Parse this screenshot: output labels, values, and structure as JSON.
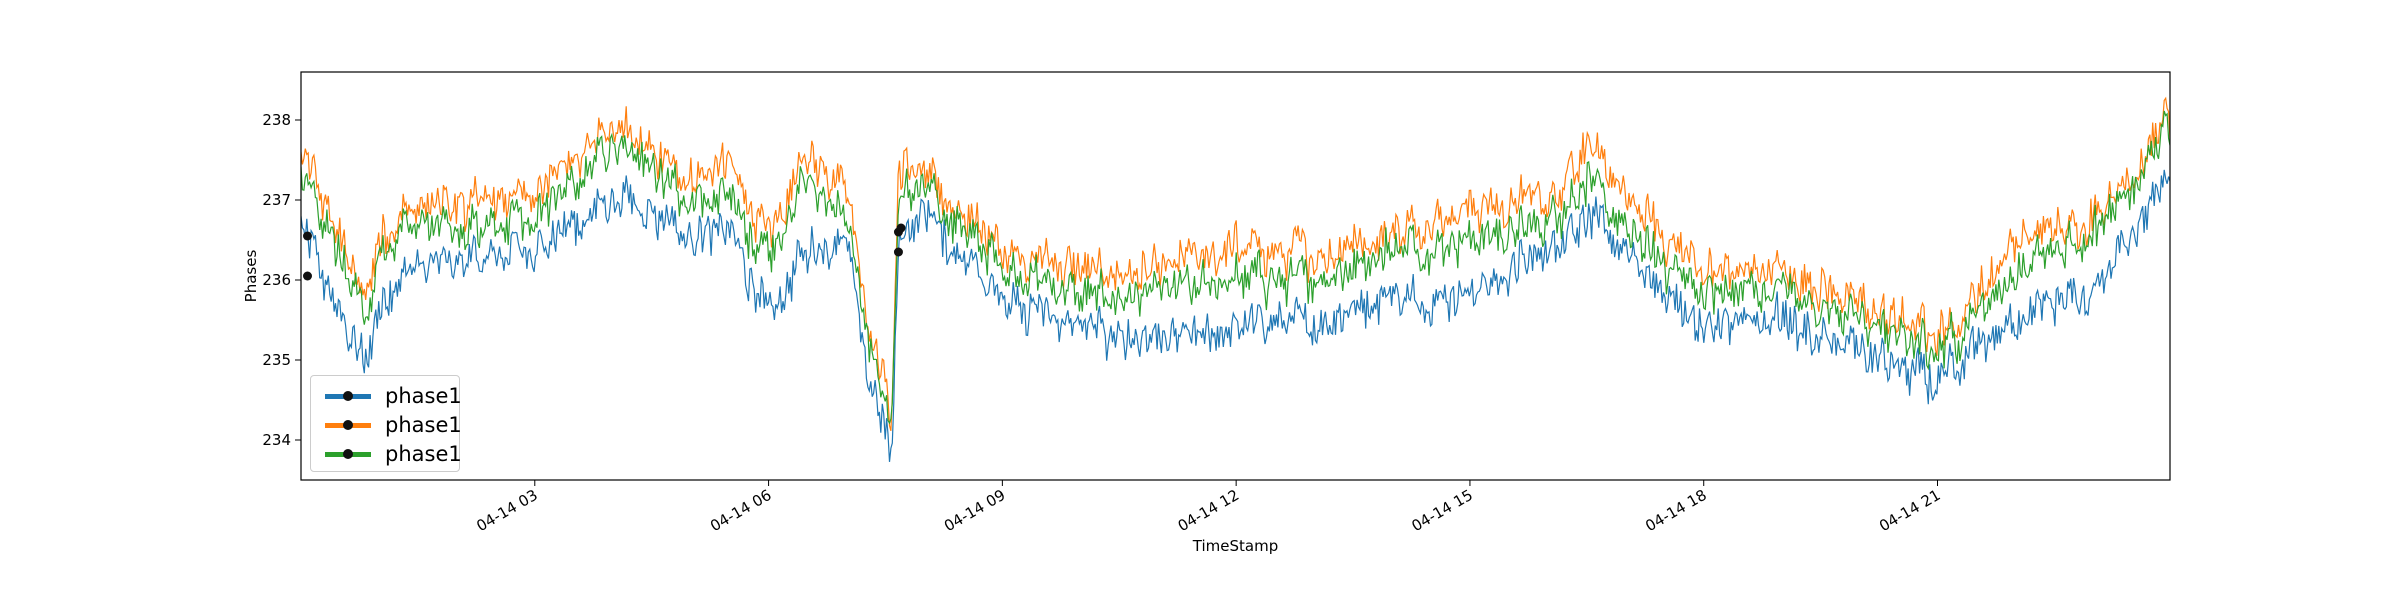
{
  "chart_data": {
    "type": "line",
    "title": "",
    "xlabel": "TimeStamp",
    "ylabel": "Phases",
    "x_range": [
      "04-14 00:00",
      "04-14 23:59"
    ],
    "ylim": [
      233.5,
      238.6
    ],
    "y_ticks": [
      234,
      235,
      236,
      237,
      238
    ],
    "x_ticks": [
      "04-14 03",
      "04-14 06",
      "04-14 09",
      "04-14 12",
      "04-14 15",
      "04-14 18",
      "04-14 21"
    ],
    "grid": false,
    "legend_position": "lower-left",
    "colors": [
      "#1f77b4",
      "#ff7f0e",
      "#2ca02c"
    ],
    "series": [
      {
        "name": "phase1",
        "color": "#1f77b4",
        "x": [
          "00:00",
          "00:30",
          "00:50",
          "01:00",
          "01:20",
          "02:00",
          "03:00",
          "04:00",
          "05:00",
          "05:30",
          "06:00",
          "06:30",
          "07:00",
          "07:15",
          "07:35",
          "07:40",
          "08:00",
          "09:00",
          "10:00",
          "11:00",
          "12:00",
          "13:00",
          "14:00",
          "15:00",
          "16:00",
          "16:30",
          "17:00",
          "18:00",
          "19:00",
          "20:00",
          "21:00",
          "21:30",
          "22:00",
          "23:00",
          "23:59"
        ],
        "y": [
          236.6,
          235.6,
          234.9,
          235.7,
          236.1,
          236.2,
          236.4,
          237.0,
          236.6,
          236.6,
          235.5,
          236.4,
          236.6,
          235.0,
          233.8,
          236.5,
          236.8,
          235.8,
          235.4,
          235.2,
          235.4,
          235.5,
          235.8,
          235.8,
          236.4,
          236.8,
          236.3,
          235.4,
          235.5,
          235.1,
          234.7,
          235.2,
          235.5,
          235.9,
          237.3
        ]
      },
      {
        "name": "phase1",
        "color": "#ff7f0e",
        "x": [
          "00:00",
          "00:30",
          "00:50",
          "01:00",
          "01:20",
          "02:00",
          "03:00",
          "04:00",
          "05:00",
          "05:30",
          "06:00",
          "06:30",
          "07:00",
          "07:15",
          "07:35",
          "07:40",
          "08:00",
          "09:00",
          "10:00",
          "11:00",
          "12:00",
          "13:00",
          "14:00",
          "15:00",
          "16:00",
          "16:30",
          "17:00",
          "18:00",
          "19:00",
          "20:00",
          "21:00",
          "21:30",
          "22:00",
          "23:00",
          "23:59"
        ],
        "y": [
          237.6,
          236.5,
          235.7,
          236.5,
          236.9,
          236.9,
          237.1,
          237.9,
          237.3,
          237.4,
          236.5,
          237.6,
          237.2,
          235.7,
          234.3,
          237.4,
          237.3,
          236.4,
          236.1,
          236.1,
          236.4,
          236.3,
          236.6,
          236.9,
          237.0,
          237.7,
          237.0,
          236.1,
          236.1,
          235.7,
          235.3,
          235.8,
          236.5,
          236.8,
          238.0
        ]
      },
      {
        "name": "phase1",
        "color": "#2ca02c",
        "x": [
          "00:00",
          "00:30",
          "00:50",
          "01:00",
          "01:20",
          "02:00",
          "03:00",
          "04:00",
          "05:00",
          "05:30",
          "06:00",
          "06:30",
          "07:00",
          "07:15",
          "07:35",
          "07:40",
          "08:00",
          "09:00",
          "10:00",
          "11:00",
          "12:00",
          "13:00",
          "14:00",
          "15:00",
          "16:00",
          "16:30",
          "17:00",
          "18:00",
          "19:00",
          "20:00",
          "21:00",
          "21:30",
          "22:00",
          "23:00",
          "23:59"
        ],
        "y": [
          237.3,
          236.3,
          235.5,
          236.3,
          236.7,
          236.6,
          236.8,
          237.7,
          237.0,
          237.0,
          236.2,
          237.3,
          236.9,
          235.5,
          234.2,
          237.1,
          237.1,
          236.2,
          235.8,
          235.8,
          236.0,
          236.0,
          236.4,
          236.5,
          236.7,
          237.3,
          236.6,
          235.8,
          235.9,
          235.5,
          235.1,
          235.6,
          236.1,
          236.6,
          237.9
        ]
      }
    ],
    "markers": [
      {
        "x": "00:05",
        "y": 236.05
      },
      {
        "x": "00:05",
        "y": 236.55
      },
      {
        "x": "07:40",
        "y": 236.35
      },
      {
        "x": "07:40",
        "y": 236.6
      },
      {
        "x": "07:42",
        "y": 236.65
      }
    ]
  },
  "legend": {
    "entries": [
      "phase1",
      "phase1",
      "phase1"
    ]
  }
}
